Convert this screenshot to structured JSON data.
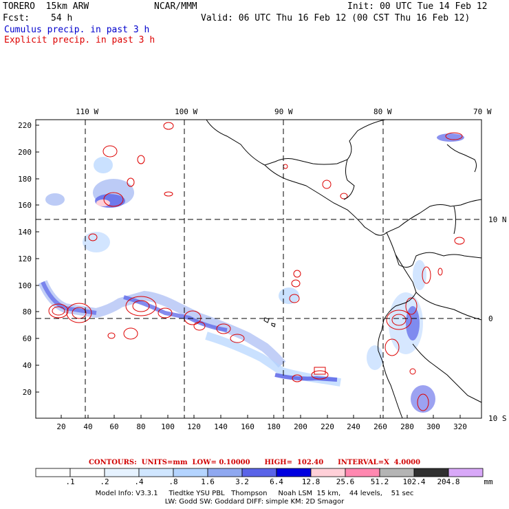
{
  "header": {
    "model": "TORERO  15km ARW",
    "org": "NCAR/MMM",
    "init": "Init: 00 UTC Tue 14 Feb 12",
    "fcst_label": "Fcst:",
    "fcst_value": "54 h",
    "valid": "Valid: 06 UTC Thu 16 Feb 12 (00 CST Thu 16 Feb 12)",
    "field1": "Cumulus precip. in past 3 h",
    "field2": "Explicit precip. in past 3 h"
  },
  "colors": {
    "field1": "#0000cc",
    "field2": "#dd0000",
    "contour": "#dd0000",
    "coast": "#000000"
  },
  "top_axis": [
    "110 W",
    "100 W",
    "90 W",
    "80 W",
    "70 W"
  ],
  "right_axis": [
    "10 N",
    "0",
    "10 S"
  ],
  "left_ticks": [
    "220",
    "200",
    "180",
    "160",
    "140",
    "120",
    "100",
    "80",
    "60",
    "40",
    "20"
  ],
  "bottom_ticks": [
    "20",
    "40",
    "60",
    "80",
    "100",
    "120",
    "140",
    "160",
    "180",
    "200",
    "220",
    "240",
    "260",
    "280",
    "300",
    "320"
  ],
  "contours_text": "CONTOURS:  UNITS=mm  LOW= 0.10000      HIGH=  102.40      INTERVAL=X  4.0000",
  "colorbar": {
    "labels": [
      ".1",
      ".2",
      ".4",
      ".8",
      "1.6",
      "3.2",
      "6.4",
      "12.8",
      "25.6",
      "51.2",
      "102.4",
      "204.8"
    ],
    "unit": "mm",
    "colors": [
      "#ffffff",
      "#ffffff",
      "#e6f2ff",
      "#d0e6ff",
      "#b4d4ff",
      "#8fa8f0",
      "#5a64e8",
      "#0000e0",
      "#ffd0d8",
      "#ff88b0",
      "#b4b4b4",
      "#303030",
      "#d8a8f8"
    ]
  },
  "info_line1": "Model Info: V3.3.1     Tiedtke YSU PBL   Thompson     Noah LSM  15 km,    44 levels,    51 sec",
  "info_line2": "LW: Godd SW: Goddard DIFF: simple KM: 2D Smagor"
}
